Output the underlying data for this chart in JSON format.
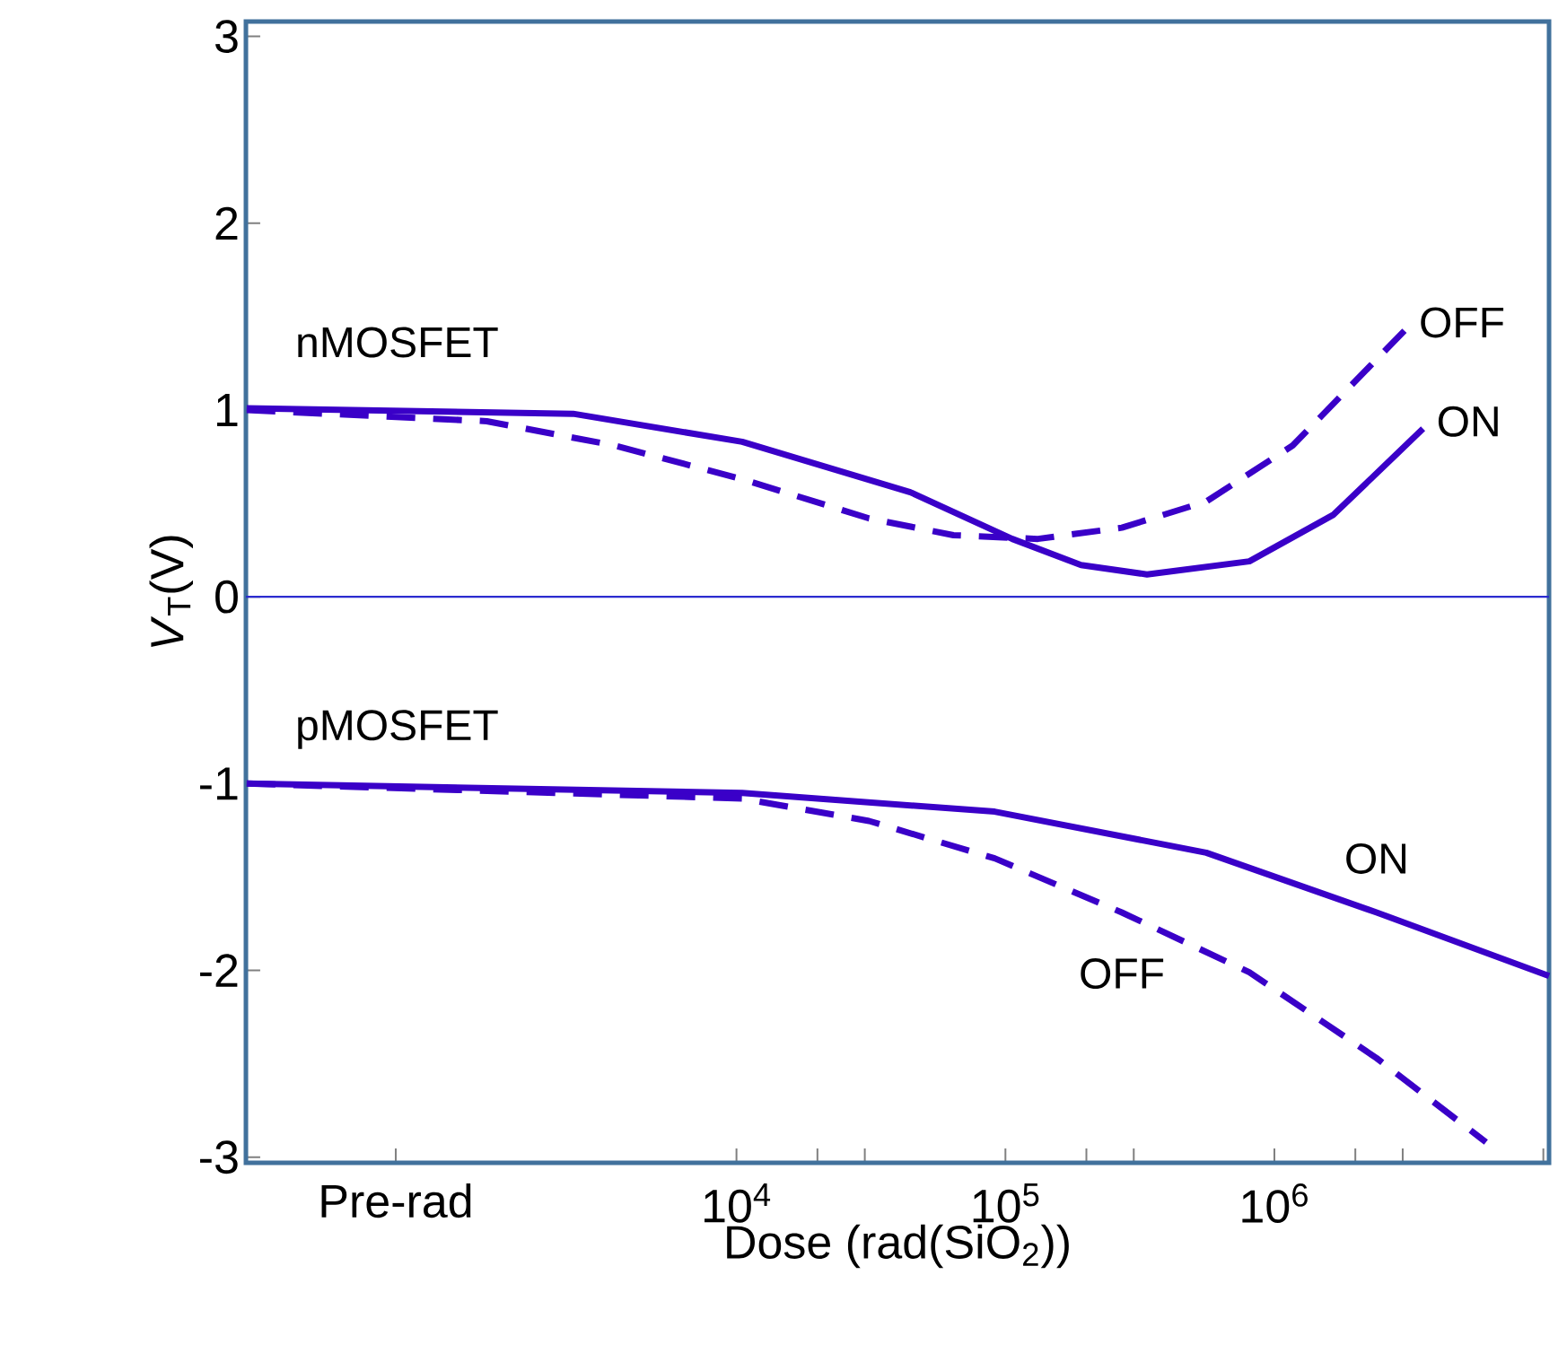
{
  "chart_data": {
    "type": "line",
    "log": "x",
    "xlabel": "Dose (rad(SiO$_{2}$))",
    "ylabel": "*V*$_{T}$(V)",
    "xlim": [
      150,
      10500000
    ],
    "ylim": [
      -3.03,
      3.08
    ],
    "xticks": [
      {
        "value": 541,
        "label": "Pre-rad"
      },
      {
        "value": 10000,
        "label": "10$^{4}$"
      },
      {
        "value": 20000,
        "label": null
      },
      {
        "value": 30000,
        "label": null
      },
      {
        "value": 100000,
        "label": "10$^{5}$"
      },
      {
        "value": 200000,
        "label": null
      },
      {
        "value": 300000,
        "label": null
      },
      {
        "value": 1000000,
        "label": "10$^{6}$"
      },
      {
        "value": 2000000,
        "label": null
      },
      {
        "value": 3000000,
        "label": null
      },
      {
        "value": 10000000,
        "label": null
      }
    ],
    "yticks": [
      -3,
      -2,
      -1,
      0,
      1,
      2,
      3
    ],
    "series": [
      {
        "name": "ON",
        "color": "#3a00c8",
        "line_style": "solid",
        "x": [
          151,
          2470,
          10500,
          44300,
          106000,
          191000,
          336000,
          807000,
          1660000,
          3570000
        ],
        "values": [
          1.01,
          0.98,
          0.83,
          0.56,
          0.31,
          0.17,
          0.12,
          0.19,
          0.44,
          0.9
        ]
      },
      {
        "name": "OFF",
        "color": "#3a00c8",
        "line_style": "dashed",
        "x": [
          151,
          1180,
          3520,
          10500,
          31100,
          64100,
          132000,
          271000,
          558000,
          1170000,
          3070000
        ],
        "values": [
          1.0,
          0.94,
          0.81,
          0.63,
          0.42,
          0.33,
          0.31,
          0.37,
          0.51,
          0.81,
          1.43
        ]
      },
      {
        "name": "ON",
        "color": "#3a00c8",
        "line_style": "solid",
        "x": [
          151,
          10500,
          91200,
          558000,
          2400000,
          10500000
        ],
        "values": [
          -1.0,
          -1.05,
          -1.15,
          -1.37,
          -1.69,
          -2.03
        ]
      },
      {
        "name": "OFF",
        "color": "#3a00c8",
        "line_style": "dashed",
        "x": [
          151,
          10500,
          31100,
          91200,
          271000,
          807000,
          2400000,
          6120000
        ],
        "values": [
          -1.0,
          -1.08,
          -1.2,
          -1.4,
          -1.69,
          -2.01,
          -2.47,
          -2.92
        ]
      }
    ],
    "ref_lines": [
      {
        "axis": "y",
        "value": 0,
        "color": "#2b2bd0"
      }
    ],
    "annotations": [
      "nMOSFET",
      "pMOSFET"
    ]
  }
}
